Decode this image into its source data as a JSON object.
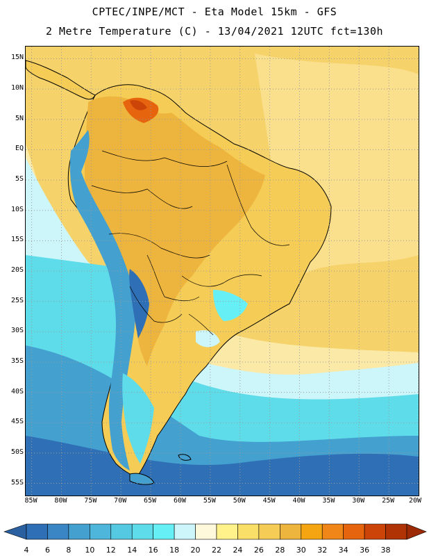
{
  "header": {
    "title_line1": "CPTEC/INPE/MCT -  Eta Model 15km - GFS",
    "title_line2": "2 Metre Temperature (C) - 13/04/2021 12UTC fct=130h"
  },
  "axes": {
    "lat_labels": [
      "15N",
      "10N",
      "5N",
      "EQ",
      "5S",
      "10S",
      "15S",
      "20S",
      "25S",
      "30S",
      "35S",
      "40S",
      "45S",
      "50S",
      "55S"
    ],
    "lon_labels": [
      "85W",
      "80W",
      "75W",
      "70W",
      "65W",
      "60W",
      "55W",
      "50W",
      "45W",
      "40W",
      "35W",
      "30W",
      "25W",
      "20W"
    ],
    "grid": true,
    "lat_range": [
      -57,
      17
    ],
    "lon_range": [
      -86,
      -20
    ]
  },
  "colorbar": {
    "labels": [
      "4",
      "6",
      "8",
      "10",
      "12",
      "14",
      "16",
      "18",
      "20",
      "22",
      "24",
      "26",
      "28",
      "30",
      "32",
      "34",
      "36",
      "38"
    ],
    "colors": [
      "#2f6fb5",
      "#3a86c4",
      "#43a0cf",
      "#4db6da",
      "#55c9e2",
      "#5fdcea",
      "#66f0f6",
      "#cdf6fb",
      "#fff9dc",
      "#fff28a",
      "#f9df68",
      "#f5cc55",
      "#eeb53e",
      "#f4a511",
      "#f08518",
      "#e5640d",
      "#cc4408",
      "#b03305"
    ],
    "min_color": "#2a5fa0",
    "max_color": "#9c2a04"
  },
  "map_colors": {
    "ocean_tropical": "#f6d36a",
    "ocean_warm_light": "#fadf8d",
    "ocean_subtropical": "#fbe9a8",
    "ocean_mid": "#cdf6fb",
    "ocean_cool": "#5fdcea",
    "ocean_cold": "#43a0cf",
    "ocean_coldest": "#2f6fb5",
    "land_base": "#f5cc55",
    "land_hot": "#eeb53e",
    "land_hottest": "#e5640d",
    "andes": "#43a0cf",
    "patagonia": "#5fdcea",
    "grid_color": "#9a9a9a",
    "border_color": "#000000"
  }
}
